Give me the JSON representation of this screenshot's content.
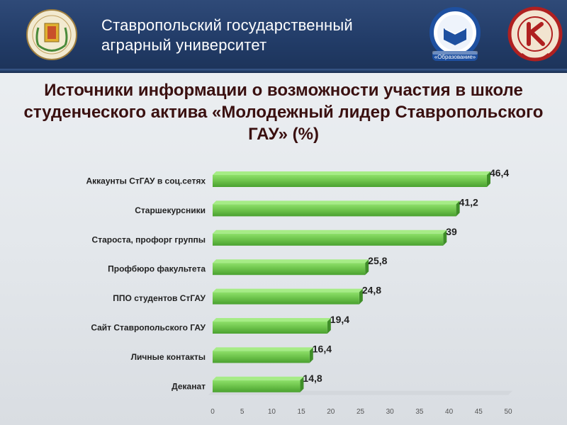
{
  "header": {
    "university": "Ставропольский государственный\nаграрный университет",
    "logo_mid_text": "«Образование»"
  },
  "chart_data": {
    "type": "bar",
    "orientation": "horizontal",
    "title": "Источники информации о возможности участия в школе студенческого актива «Молодежный лидер Ставропольского ГАУ» (%)",
    "categories": [
      "Аккаунты СтГАУ в соц.сетях",
      "Старшекурсники",
      "Староста, профорг группы",
      "Профбюро факультета",
      "ППО студентов СтГАУ",
      "Сайт Ставропольского ГАУ",
      "Личные контакты",
      "Деканат"
    ],
    "values": [
      46.4,
      41.2,
      39,
      25.8,
      24.8,
      19.4,
      16.4,
      14.8
    ],
    "value_labels": [
      "46,4",
      "41,2",
      "39",
      "25,8",
      "24,8",
      "19,4",
      "16,4",
      "14,8"
    ],
    "xlim": [
      0,
      50
    ],
    "xticks": [
      0,
      5,
      10,
      15,
      20,
      25,
      30,
      35,
      40,
      45,
      50
    ],
    "bar_color": "#6cc24a",
    "grid": false,
    "legend": false
  }
}
